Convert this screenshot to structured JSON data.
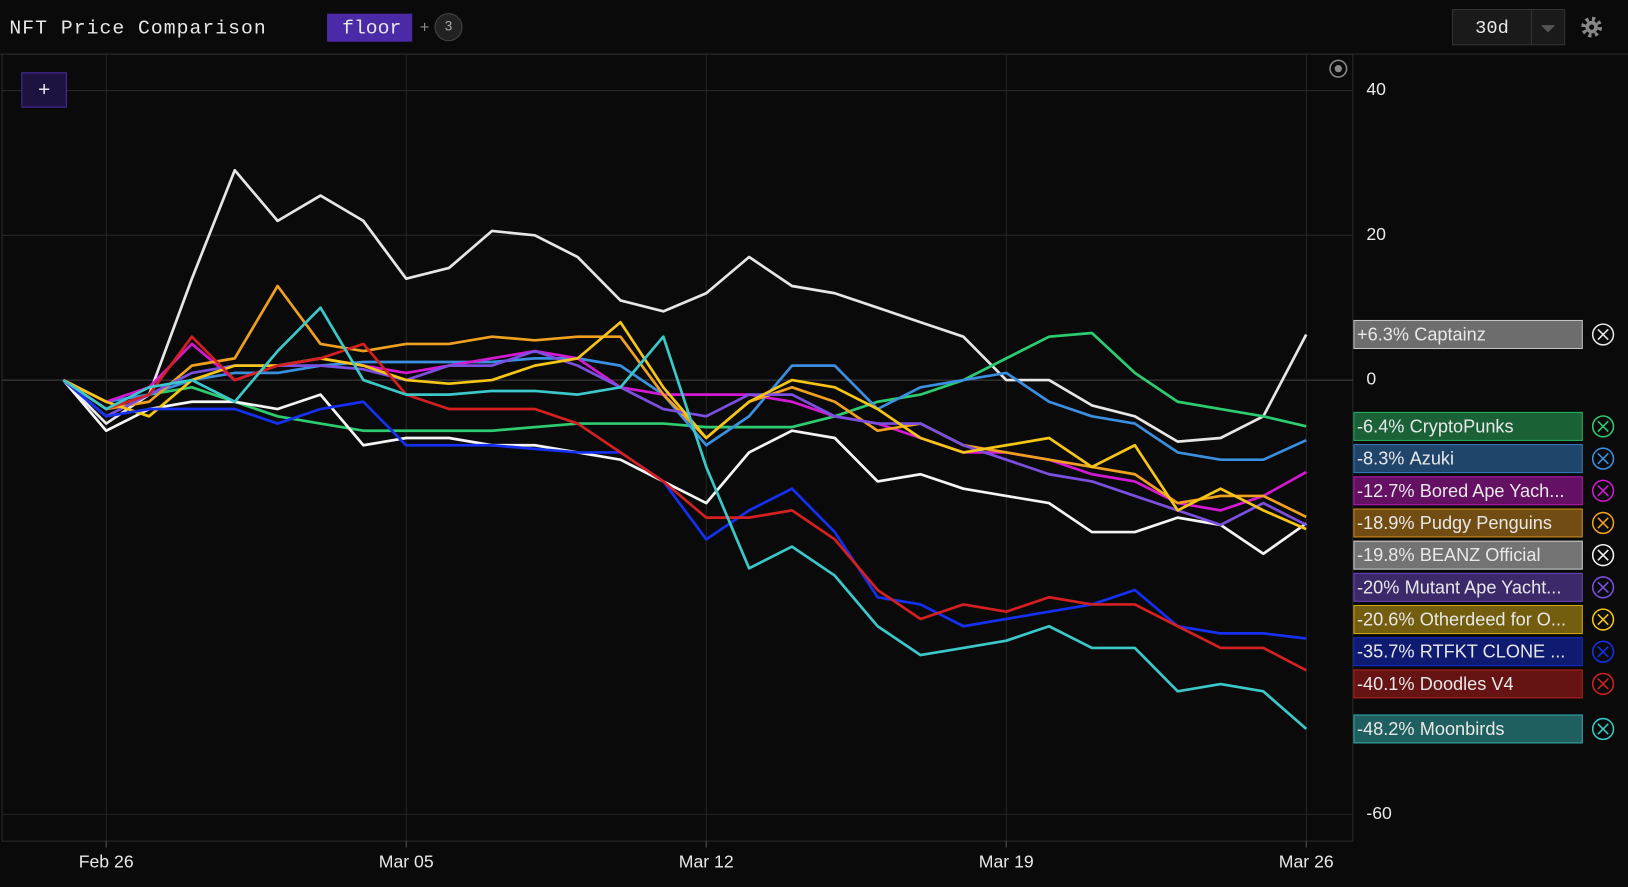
{
  "toolbar": {
    "title": "NFT Price Comparison",
    "metric": "floor",
    "add": "+",
    "count": "3",
    "range": "30d"
  },
  "add_button": "+",
  "chart_data": {
    "type": "line",
    "categories": [
      null,
      "Feb 26",
      null,
      null,
      null,
      null,
      null,
      null,
      "Mar 05",
      null,
      null,
      null,
      null,
      null,
      null,
      "Mar 12",
      null,
      null,
      null,
      null,
      null,
      null,
      "Mar 19",
      null,
      null,
      null,
      null,
      null,
      null,
      "Mar 26"
    ],
    "ylim": [
      -63.7,
      44.6
    ],
    "yticks": [
      40,
      20,
      0,
      -60
    ],
    "series": [
      {
        "name": "Captainz",
        "change_label": "+6.3%",
        "color": "#e6e6e6",
        "values": [
          0,
          -6,
          -2,
          14,
          29,
          22,
          25.5,
          22,
          14,
          15.5,
          20.6,
          20,
          17,
          11,
          9.5,
          12,
          17,
          13,
          12,
          10,
          8,
          6,
          0,
          0,
          -3.5,
          -5,
          -8.5,
          -8,
          -5,
          6.3
        ]
      },
      {
        "name": "CryptoPunks",
        "change_label": "-6.4%",
        "color": "#2ecc71",
        "values": [
          0,
          -4,
          -2,
          -1,
          -3,
          -5,
          -6,
          -7,
          -7,
          -7,
          -7,
          -6.5,
          -6,
          -6,
          -6,
          -6.5,
          -6.5,
          -6.5,
          -5,
          -3,
          -2,
          0,
          3,
          6,
          6.5,
          1,
          -3,
          -4,
          -5,
          -6.4
        ]
      },
      {
        "name": "Azuki",
        "change_label": "-8.3%",
        "color": "#3b8fe0",
        "values": [
          0,
          -3,
          -2,
          0,
          1,
          1,
          2,
          2.5,
          2.5,
          2.5,
          2.5,
          3,
          3,
          2,
          -2,
          -9,
          -5,
          2,
          2,
          -4,
          -1,
          0,
          1,
          -3,
          -5,
          -6,
          -10,
          -11,
          -11,
          -8.3
        ]
      },
      {
        "name": "Bored Ape Yach...",
        "change_label": "-12.7%",
        "color": "#d21ad2",
        "values": [
          0,
          -3,
          -1,
          5,
          0,
          2,
          3,
          2,
          1,
          2,
          3,
          4,
          3,
          -1,
          -2,
          -2,
          -2,
          -3,
          -5,
          -6,
          -8,
          -10,
          -10,
          -11,
          -13,
          -14,
          -17,
          -18,
          -16,
          -12.7
        ]
      },
      {
        "name": "Pudgy Penguins",
        "change_label": "-18.9%",
        "color": "#f0a020",
        "values": [
          0,
          -4,
          -3,
          2,
          3,
          13,
          5,
          4,
          5,
          5,
          6,
          5.5,
          6,
          6,
          -2,
          -8,
          -3,
          -1,
          -3,
          -7,
          -6,
          -9,
          -10,
          -11,
          -12,
          -13,
          -17,
          -16,
          -16,
          -18.9
        ]
      },
      {
        "name": "BEANZ Official",
        "change_label": "-19.8%",
        "color": "#f4f4f4",
        "values": [
          0,
          -7,
          -4,
          -3,
          -3,
          -4,
          -2,
          -9,
          -8,
          -8,
          -9,
          -9,
          -10,
          -11,
          -14,
          -17,
          -10,
          -7,
          -8,
          -14,
          -13,
          -15,
          -16,
          -17,
          -21,
          -21,
          -19,
          -20,
          -24,
          -19.8
        ]
      },
      {
        "name": "Mutant Ape Yacht...",
        "change_label": "-20%",
        "color": "#7b4fe0",
        "values": [
          0,
          -5,
          -2,
          1,
          2,
          2,
          2,
          1.5,
          0,
          2,
          2,
          4,
          2,
          -1,
          -4,
          -5,
          -2,
          -2,
          -5,
          -6,
          -6,
          -9,
          -11,
          -13,
          -14,
          -16,
          -18,
          -20,
          -17,
          -20
        ]
      },
      {
        "name": "Otherdeed for O...",
        "change_label": "-20.6%",
        "color": "#f5c518",
        "values": [
          0,
          -3,
          -5,
          0,
          2,
          2,
          3,
          2,
          0,
          -0.5,
          0,
          2,
          3,
          8,
          -1,
          -8,
          -3,
          0,
          -1,
          -4,
          -8,
          -10,
          -9,
          -8,
          -12,
          -9,
          -18,
          -15,
          -18,
          -20.6
        ]
      },
      {
        "name": "RTFKT CLONE ...",
        "change_label": "-35.7%",
        "color": "#1530f0",
        "values": [
          0,
          -5,
          -4,
          -4,
          -4,
          -6,
          -4,
          -3,
          -9,
          -9,
          -9,
          -9.5,
          -10,
          -10,
          -14,
          -22,
          -18,
          -15,
          -21,
          -30,
          -31,
          -34,
          -33,
          -32,
          -31,
          -29,
          -34,
          -35,
          -35,
          -35.7
        ]
      },
      {
        "name": "Doodles V4",
        "change_label": "-40.1%",
        "color": "#d42020",
        "values": [
          0,
          -4,
          -2,
          6,
          0,
          2,
          3,
          5,
          -2,
          -4,
          -4,
          -4,
          -6,
          -10,
          -14,
          -19,
          -19,
          -18,
          -22,
          -29,
          -33,
          -31,
          -32,
          -30,
          -31,
          -31,
          -34,
          -37,
          -37,
          -40.1
        ]
      },
      {
        "name": "Moonbirds",
        "change_label": "-48.2%",
        "color": "#3cc8c8",
        "values": [
          0,
          -4,
          -1,
          0,
          -3,
          4,
          10,
          0,
          -2,
          -2,
          -1.5,
          -1.5,
          -2,
          -1,
          6,
          -12,
          -26,
          -23,
          -27,
          -34,
          -38,
          -37,
          -36,
          -34,
          -37,
          -37,
          -43,
          -42,
          -43,
          -48.2
        ]
      }
    ]
  }
}
